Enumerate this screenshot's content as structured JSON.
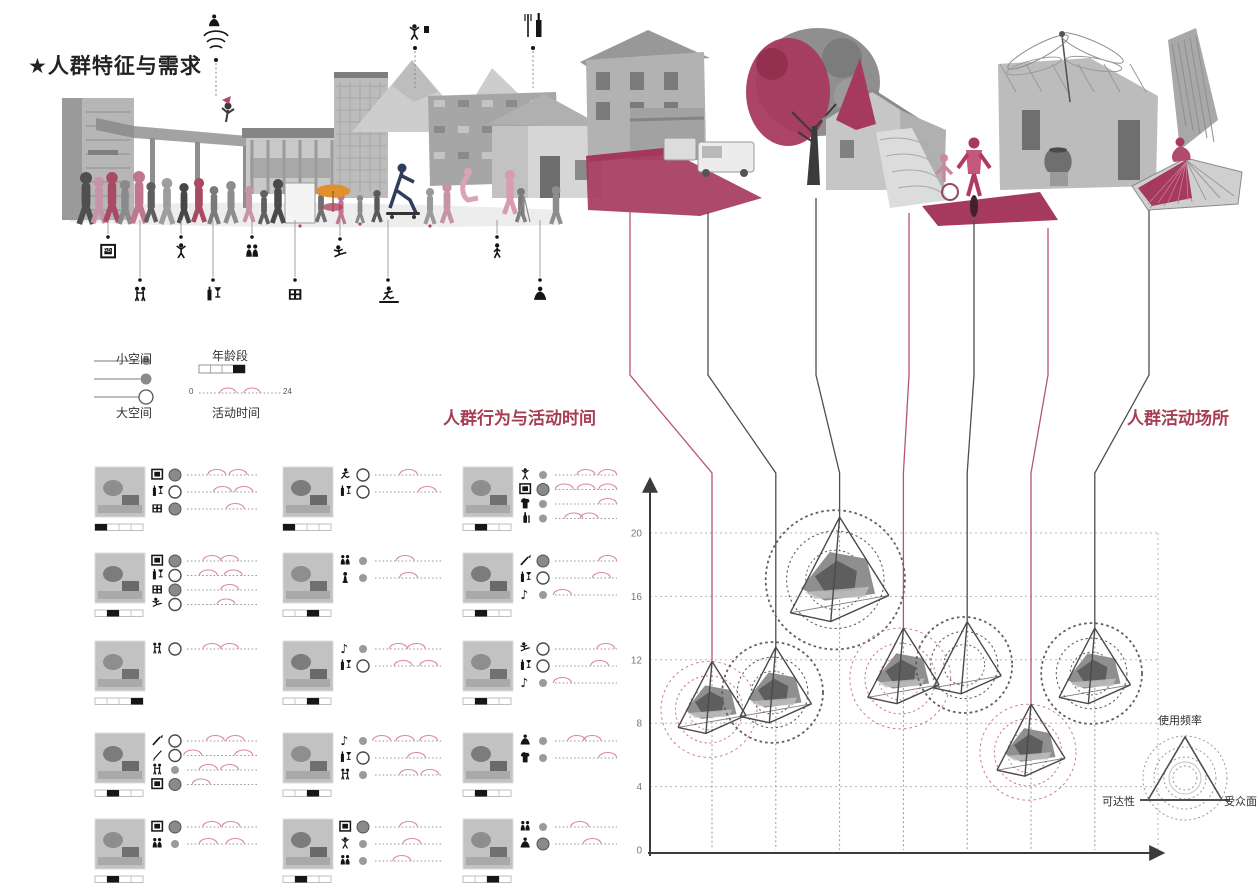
{
  "title": "★人群特征与需求",
  "sections": {
    "behavior_label": "人群行为与活动时间",
    "places_label": "人群活动场所"
  },
  "legend": {
    "small_space": "小空间",
    "large_space": "大空间",
    "age_group": "年龄段",
    "activity_time": "活动时间",
    "time_start": "0",
    "time_end": "24"
  },
  "radar": {
    "top": "使用频率",
    "left": "可达性",
    "right": "受众面"
  },
  "colors": {
    "accent": "#a63d52",
    "line_red": "#b5566b",
    "ring_red": "#c9808f",
    "ring_black": "#5f5f5f",
    "magenta": "#a63a5e",
    "arc": "#d98b98",
    "ink": "#3c3c3c",
    "grid": "#b5b5b5"
  },
  "montage": {
    "top_icons": [
      {
        "name": "meditation-signal-icon"
      },
      {
        "name": "cheers-person-icon"
      },
      {
        "name": "bottle-tools-icon"
      }
    ],
    "bottom_icons": [
      {
        "name": "photo-sign-icon"
      },
      {
        "name": "couple-icon"
      },
      {
        "name": "singer-icon"
      },
      {
        "name": "bottle-glass-icon"
      },
      {
        "name": "group-icon"
      },
      {
        "name": "film-icon"
      },
      {
        "name": "martial-arts-icon"
      },
      {
        "name": "skateboard-icon"
      },
      {
        "name": "walking-icon"
      },
      {
        "name": "meditation-icon"
      }
    ]
  },
  "behavior_grid": {
    "rows": [
      {
        "cells": [
          {
            "age_segment": 0,
            "activities": [
              {
                "icon": "frame-icon",
                "dot": "filled",
                "arcs": [
                  0.42,
                  0.72
                ]
              },
              {
                "icon": "drink-icon",
                "dot": "open",
                "arcs": [
                  0.5,
                  0.8
                ]
              },
              {
                "icon": "film-icon",
                "dot": "filled",
                "arcs": [
                  0.68
                ]
              }
            ]
          },
          {
            "age_segment": 0,
            "activities": [
              {
                "icon": "run-icon",
                "dot": "open",
                "arcs": [
                  0.5
                ]
              },
              {
                "icon": "drink-icon",
                "dot": "open",
                "arcs": [
                  0.78
                ]
              }
            ]
          },
          {
            "age_segment": 1,
            "activities": [
              {
                "icon": "dance-icon",
                "dot": "small",
                "arcs": [
                  0.5,
                  0.85
                ]
              },
              {
                "icon": "frame-icon",
                "dot": "filled",
                "arcs": [
                  0.15,
                  0.5,
                  0.85
                ]
              },
              {
                "icon": "shirt-icon",
                "dot": "small",
                "arcs": [
                  0.85
                ]
              },
              {
                "icon": "bottle-icon",
                "dot": "small",
                "arcs": [
                  0.3,
                  0.55
                ]
              }
            ]
          }
        ]
      },
      {
        "cells": [
          {
            "age_segment": 1,
            "activities": [
              {
                "icon": "frame-icon",
                "dot": "filled",
                "arcs": [
                  0.35,
                  0.6
                ]
              },
              {
                "icon": "drink-icon",
                "dot": "open",
                "arcs": [
                  0.3,
                  0.65
                ]
              },
              {
                "icon": "film-icon",
                "dot": "filled",
                "arcs": [
                  0.6
                ]
              },
              {
                "icon": "kick-icon",
                "dot": "open",
                "arcs": [
                  0.55
                ]
              }
            ]
          },
          {
            "age_segment": 2,
            "activities": [
              {
                "icon": "people-icon",
                "dot": "small",
                "arcs": [
                  0.45
                ]
              },
              {
                "icon": "chess-icon",
                "dot": "small",
                "arcs": [
                  0.5
                ]
              }
            ]
          },
          {
            "age_segment": 1,
            "activities": [
              {
                "icon": "brush-icon",
                "dot": "filled",
                "arcs": [
                  0.85
                ]
              },
              {
                "icon": "drink-icon",
                "dot": "open",
                "arcs": [
                  0.75
                ]
              },
              {
                "icon": "music-icon",
                "dot": "small",
                "arcs": [
                  0.12
                ]
              }
            ]
          }
        ]
      },
      {
        "cells": [
          {
            "age_segment": 3,
            "activities": [
              {
                "icon": "couple-icon",
                "dot": "open",
                "arcs": [
                  0.35,
                  0.6
                ]
              }
            ]
          },
          {
            "age_segment": 2,
            "activities": [
              {
                "icon": "music-icon",
                "dot": "small",
                "arcs": [
                  0.35,
                  0.62
                ]
              },
              {
                "icon": "drink-icon",
                "dot": "open",
                "arcs": [
                  0.42,
                  0.8
                ]
              }
            ]
          },
          {
            "age_segment": 1,
            "activities": [
              {
                "icon": "kick-icon",
                "dot": "open",
                "arcs": [
                  0.82
                ]
              },
              {
                "icon": "drink-icon",
                "dot": "open",
                "arcs": [
                  0.72
                ]
              },
              {
                "icon": "music-icon",
                "dot": "small",
                "arcs": [
                  0.12
                ]
              }
            ]
          }
        ]
      },
      {
        "cells": [
          {
            "age_segment": 1,
            "activities": [
              {
                "icon": "brush-icon",
                "dot": "open",
                "arcs": [
                  0.4,
                  0.68
                ]
              },
              {
                "icon": "pen-icon",
                "dot": "open",
                "arcs": [
                  0.08,
                  0.8
                ]
              },
              {
                "icon": "couple-icon",
                "dot": "small",
                "arcs": [
                  0.3,
                  0.6
                ]
              },
              {
                "icon": "frame-icon",
                "dot": "filled",
                "arcs": [
                  0.2
                ]
              }
            ]
          },
          {
            "age_segment": 2,
            "activities": [
              {
                "icon": "music-icon",
                "dot": "small",
                "arcs": [
                  0.1,
                  0.45,
                  0.8
                ]
              },
              {
                "icon": "drink-icon",
                "dot": "open",
                "arcs": [
                  0.62
                ]
              },
              {
                "icon": "couple-icon",
                "dot": "small",
                "arcs": [
                  0.5,
                  0.82
                ]
              }
            ]
          },
          {
            "age_segment": 1,
            "activities": [
              {
                "icon": "meditate-icon",
                "dot": "small",
                "arcs": [
                  0.35,
                  0.6
                ]
              },
              {
                "icon": "shirt-icon",
                "dot": "small",
                "arcs": [
                  0.85
                ]
              }
            ]
          }
        ]
      },
      {
        "cells": [
          {
            "age_segment": 1,
            "activities": [
              {
                "icon": "frame-icon",
                "dot": "filled",
                "arcs": [
                  0.35,
                  0.62
                ]
              },
              {
                "icon": "people-icon",
                "dot": "small",
                "arcs": [
                  0.3,
                  0.68
                ]
              }
            ]
          },
          {
            "age_segment": 1,
            "activities": [
              {
                "icon": "frame-icon",
                "dot": "filled",
                "arcs": [
                  0.5
                ]
              },
              {
                "icon": "dance-icon",
                "dot": "small",
                "arcs": [
                  0.55
                ]
              },
              {
                "icon": "people-icon",
                "dot": "small",
                "arcs": [
                  0.4
                ]
              }
            ]
          },
          {
            "age_segment": 2,
            "activities": [
              {
                "icon": "people-icon",
                "dot": "small",
                "arcs": [
                  0.4
                ]
              },
              {
                "icon": "meditate-icon",
                "dot": "filled",
                "arcs": [
                  0.6
                ]
              }
            ]
          }
        ]
      }
    ]
  },
  "chart_data": {
    "type": "scatter",
    "title": "人群活动场所",
    "y_axis": {
      "ticks": [
        0,
        4,
        8,
        12,
        16,
        20
      ],
      "range": [
        0,
        22
      ]
    },
    "x_axis": {
      "label": "",
      "slots": 7
    },
    "grid": true,
    "points": [
      {
        "slot": 1,
        "apex": 11.9,
        "ring": "red",
        "photo": true,
        "size": 1.0
      },
      {
        "slot": 2,
        "apex": 12.8,
        "ring": "black",
        "photo": true,
        "size": 1.05
      },
      {
        "slot": 3,
        "apex": 21.0,
        "ring": "black",
        "photo": true,
        "size": 1.45
      },
      {
        "slot": 4,
        "apex": 14.0,
        "ring": "red",
        "photo": true,
        "size": 1.05
      },
      {
        "slot": 5,
        "apex": 14.4,
        "ring": "black",
        "photo": false,
        "size": 1.0
      },
      {
        "slot": 6,
        "apex": 9.2,
        "ring": "red",
        "photo": true,
        "size": 1.0
      },
      {
        "slot": 7,
        "apex": 14.0,
        "ring": "black",
        "photo": true,
        "size": 1.05
      }
    ]
  }
}
